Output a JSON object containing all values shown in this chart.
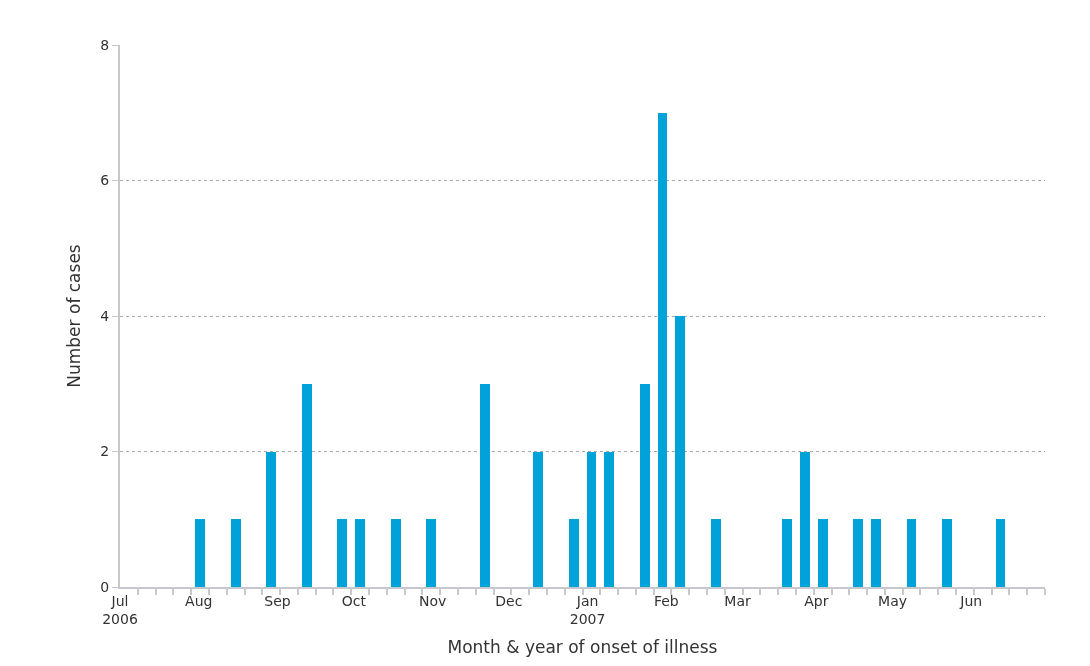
{
  "chart_data": {
    "type": "bar",
    "xlabel": "Month & year of onset of illness",
    "ylabel": "Number of cases",
    "x": [
      "2006-08-01T12:00",
      "2006-08-15T12:00",
      "2006-08-29T12:00",
      "2006-09-12T12:00",
      "2006-09-26T12:00",
      "2006-10-03T12:00",
      "2006-10-17T12:00",
      "2006-10-31T12:00",
      "2006-11-21T12:00",
      "2006-12-12T12:00",
      "2006-12-26T12:00",
      "2007-01-02T12:00",
      "2007-01-09T12:00",
      "2007-01-23T12:00",
      "2007-01-30T12:00",
      "2007-02-06T12:00",
      "2007-02-20T12:00",
      "2007-03-20T12:00",
      "2007-03-27T12:00",
      "2007-04-03T12:00",
      "2007-04-17T12:00",
      "2007-04-24T12:00",
      "2007-05-08T12:00",
      "2007-05-22T12:00",
      "2007-06-12T12:00"
    ],
    "values": [
      1,
      1,
      2,
      3,
      1,
      1,
      1,
      1,
      3,
      2,
      1,
      2,
      2,
      3,
      7,
      4,
      1,
      1,
      2,
      1,
      1,
      1,
      1,
      1,
      1
    ],
    "color": "#00a3d9",
    "xlim": [
      "2006-07-01",
      "2007-06-30"
    ],
    "xticks": [
      {
        "value": "2006-07-01",
        "label": "Jul\n2006"
      },
      {
        "value": "2006-08-01",
        "label": "Aug"
      },
      {
        "value": "2006-09-01",
        "label": "Sep"
      },
      {
        "value": "2006-10-01",
        "label": "Oct"
      },
      {
        "value": "2006-11-01",
        "label": "Nov"
      },
      {
        "value": "2006-12-01",
        "label": "Dec"
      },
      {
        "value": "2007-01-01",
        "label": "Jan\n2007"
      },
      {
        "value": "2007-02-01",
        "label": "Feb"
      },
      {
        "value": "2007-03-01",
        "label": "Mar"
      },
      {
        "value": "2007-04-01",
        "label": "Apr"
      },
      {
        "value": "2007-05-01",
        "label": "May"
      },
      {
        "value": "2007-06-01",
        "label": "Jun"
      },
      {
        "value": "2006-07-08",
        "label": null
      },
      {
        "value": "2006-07-15",
        "label": null
      },
      {
        "value": "2006-07-22",
        "label": null
      },
      {
        "value": "2006-07-29",
        "label": null
      },
      {
        "value": "2006-08-05",
        "label": null
      },
      {
        "value": "2006-08-12",
        "label": null
      },
      {
        "value": "2006-08-19",
        "label": null
      },
      {
        "value": "2006-08-26",
        "label": null
      },
      {
        "value": "2006-09-02",
        "label": null
      },
      {
        "value": "2006-09-09",
        "label": null
      },
      {
        "value": "2006-09-16",
        "label": null
      },
      {
        "value": "2006-09-23",
        "label": null
      },
      {
        "value": "2006-09-30",
        "label": null
      },
      {
        "value": "2006-10-07",
        "label": null
      },
      {
        "value": "2006-10-14",
        "label": null
      },
      {
        "value": "2006-10-21",
        "label": null
      },
      {
        "value": "2006-10-28",
        "label": null
      },
      {
        "value": "2006-11-04",
        "label": null
      },
      {
        "value": "2006-11-11",
        "label": null
      },
      {
        "value": "2006-11-18",
        "label": null
      },
      {
        "value": "2006-11-25",
        "label": null
      },
      {
        "value": "2006-12-02",
        "label": null
      },
      {
        "value": "2006-12-09",
        "label": null
      },
      {
        "value": "2006-12-16",
        "label": null
      },
      {
        "value": "2006-12-23",
        "label": null
      },
      {
        "value": "2006-12-30",
        "label": null
      },
      {
        "value": "2007-01-06",
        "label": null
      },
      {
        "value": "2007-01-13",
        "label": null
      },
      {
        "value": "2007-01-20",
        "label": null
      },
      {
        "value": "2007-01-27",
        "label": null
      },
      {
        "value": "2007-02-03",
        "label": null
      },
      {
        "value": "2007-02-10",
        "label": null
      },
      {
        "value": "2007-02-17",
        "label": null
      },
      {
        "value": "2007-02-24",
        "label": null
      },
      {
        "value": "2007-03-03",
        "label": null
      },
      {
        "value": "2007-03-10",
        "label": null
      },
      {
        "value": "2007-03-17",
        "label": null
      },
      {
        "value": "2007-03-24",
        "label": null
      },
      {
        "value": "2007-03-31",
        "label": null
      },
      {
        "value": "2007-04-07",
        "label": null
      },
      {
        "value": "2007-04-14",
        "label": null
      },
      {
        "value": "2007-04-21",
        "label": null
      },
      {
        "value": "2007-04-28",
        "label": null
      },
      {
        "value": "2007-05-05",
        "label": null
      },
      {
        "value": "2007-05-12",
        "label": null
      },
      {
        "value": "2007-05-19",
        "label": null
      },
      {
        "value": "2007-05-26",
        "label": null
      },
      {
        "value": "2007-06-02",
        "label": null
      },
      {
        "value": "2007-06-09",
        "label": null
      },
      {
        "value": "2007-06-16",
        "label": null
      },
      {
        "value": "2007-06-23",
        "label": null
      },
      {
        "value": "2007-06-30",
        "label": null
      }
    ],
    "ylim": [
      0,
      8
    ],
    "yticks": [
      0,
      2,
      4,
      6,
      8
    ],
    "grid": "y"
  }
}
